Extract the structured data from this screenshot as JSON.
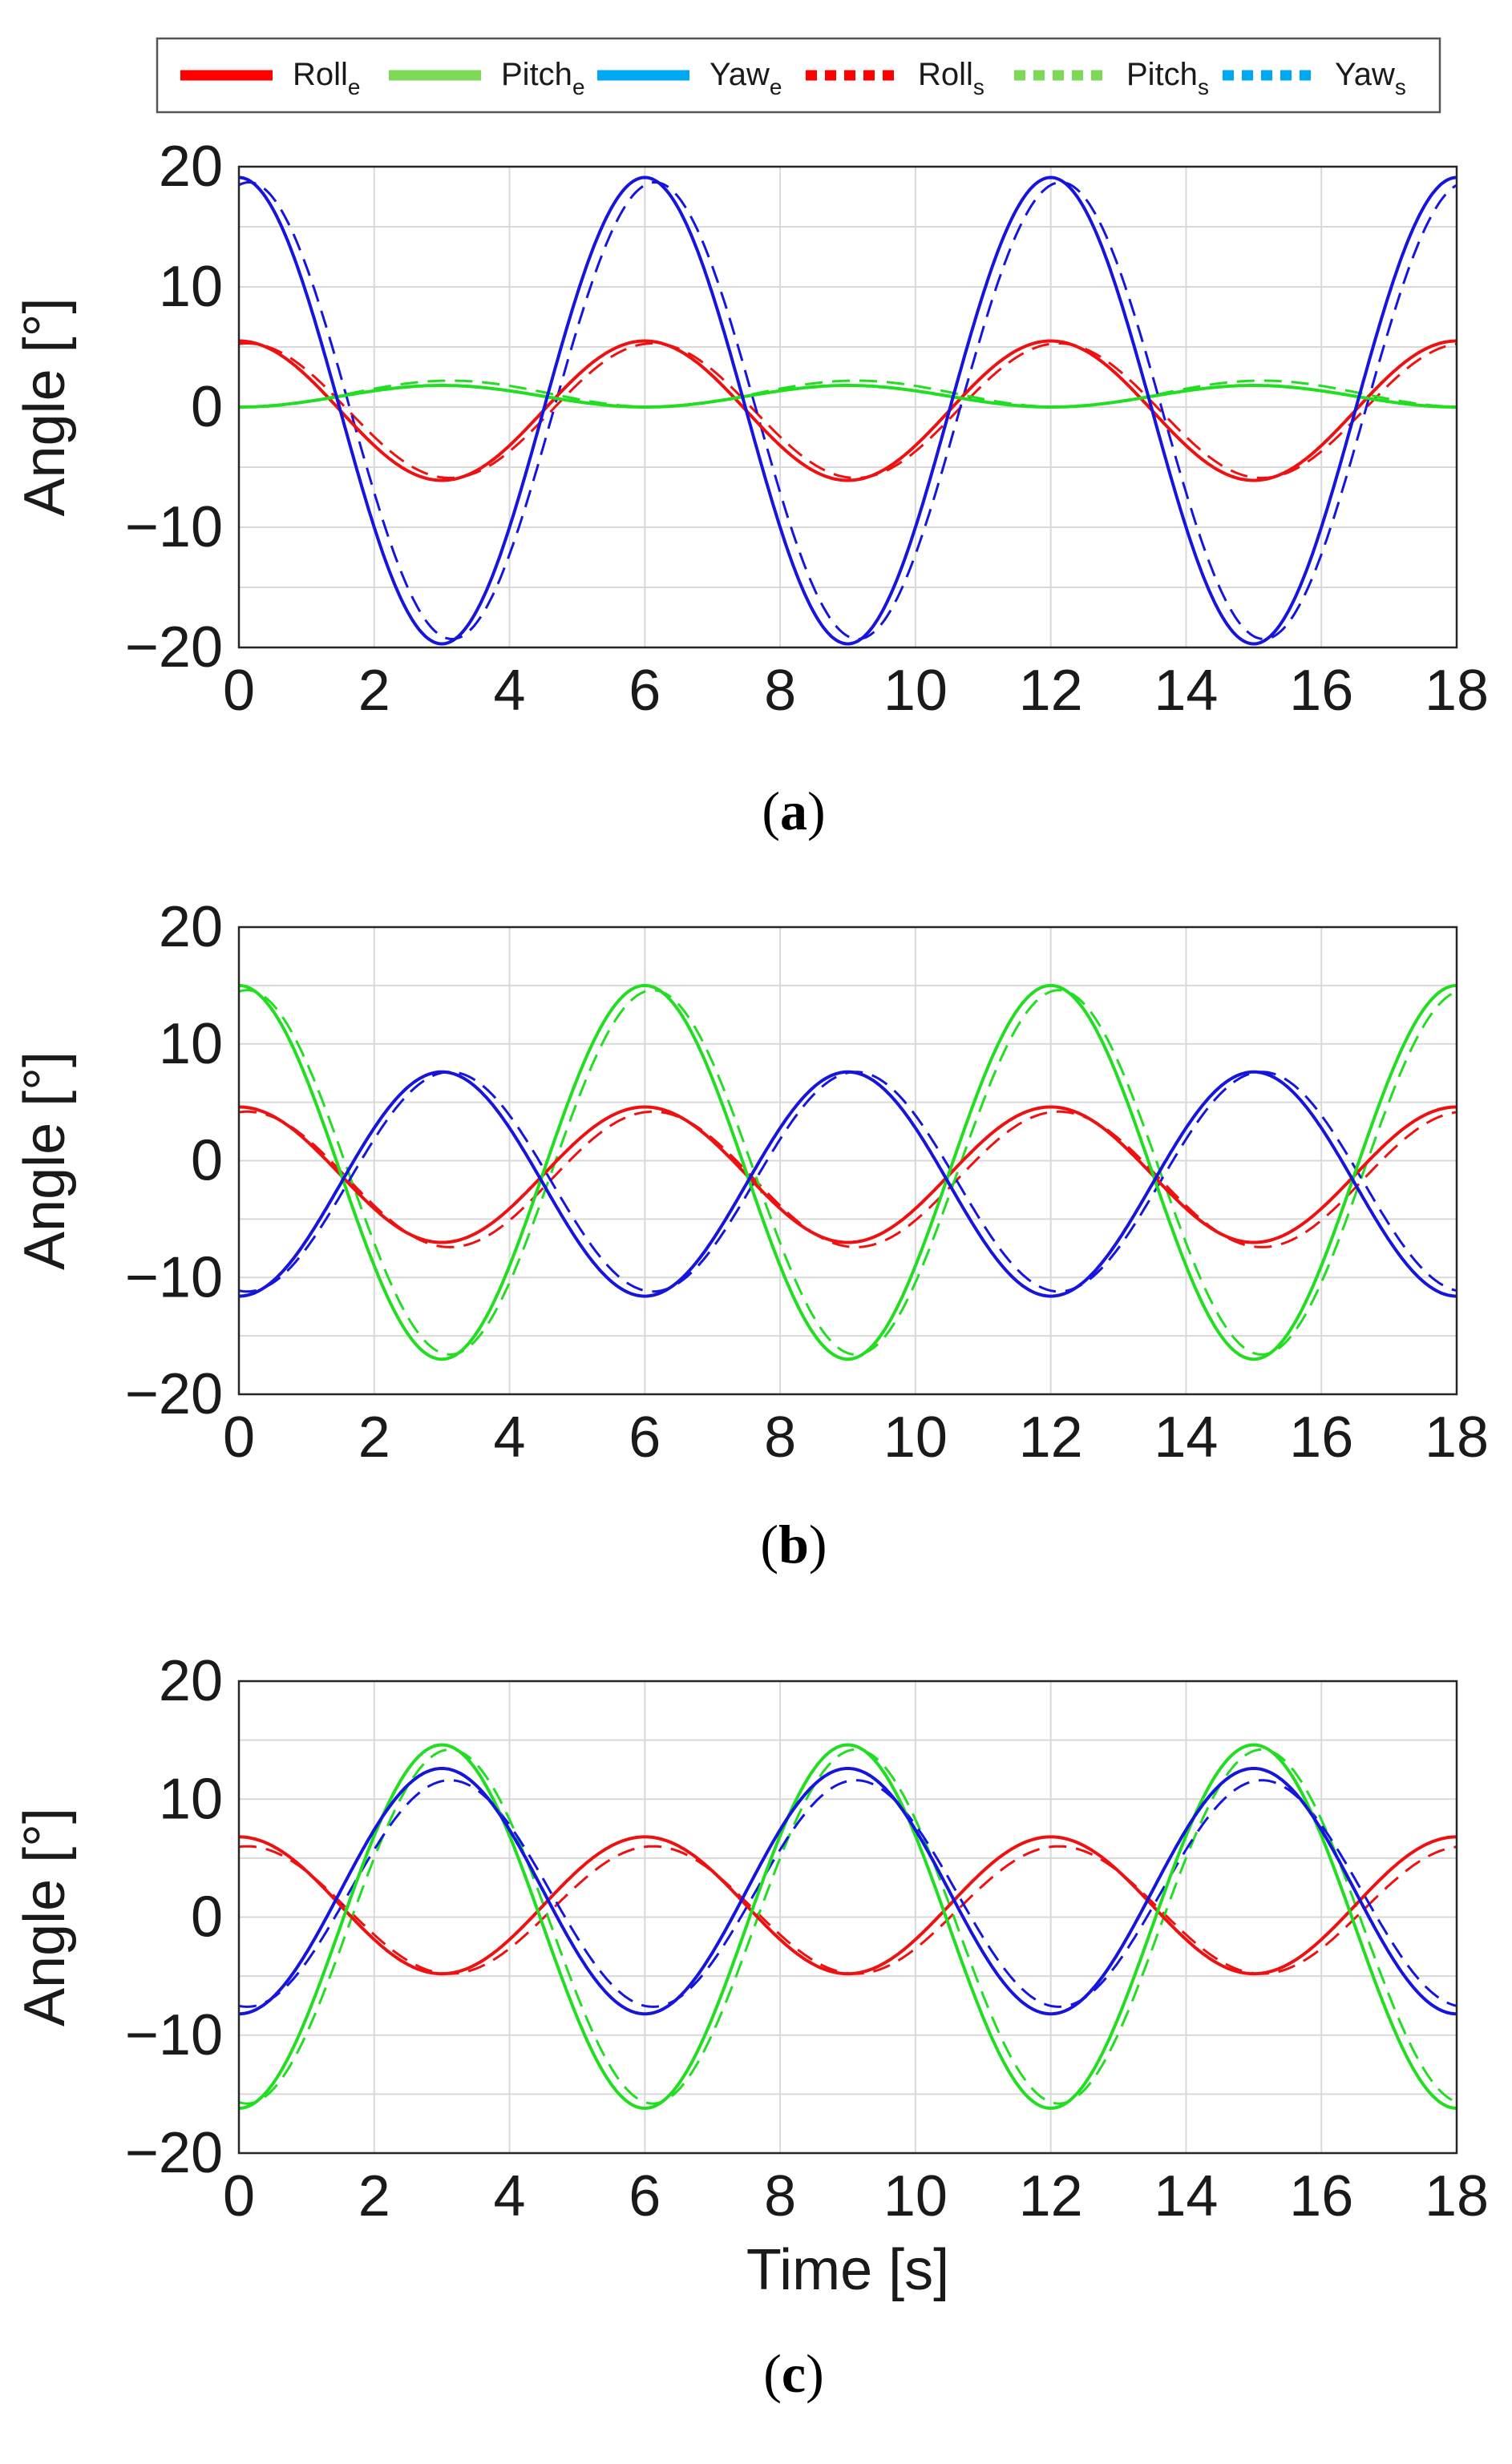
{
  "legend": {
    "entries": [
      {
        "name": "Roll",
        "sub": "e",
        "color": "#ff0000",
        "style": "solid"
      },
      {
        "name": "Pitch",
        "sub": "e",
        "color": "#7ed957",
        "style": "solid"
      },
      {
        "name": "Yaw",
        "sub": "e",
        "color": "#00a8f0",
        "style": "solid"
      },
      {
        "name": "Roll",
        "sub": "s",
        "color": "#ff0000",
        "style": "dotted"
      },
      {
        "name": "Pitch",
        "sub": "s",
        "color": "#7ed957",
        "style": "dotted"
      },
      {
        "name": "Yaw",
        "sub": "s",
        "color": "#00a8f0",
        "style": "dotted"
      }
    ]
  },
  "colors": {
    "roll": "#ee1111",
    "pitch": "#22dd22",
    "yaw": "#1515dd"
  },
  "chart_data": [
    {
      "type": "line",
      "caption": "a",
      "xlabel": "",
      "ylabel": "Angle [°]",
      "xlim": [
        0,
        18
      ],
      "ylim": [
        -20,
        20
      ],
      "xticks": [
        "0",
        "2",
        "4",
        "6",
        "8",
        "10",
        "12",
        "14",
        "16",
        "18"
      ],
      "yticks": [
        "20",
        "10",
        "0",
        "−10",
        "−20"
      ],
      "grid": true,
      "period_s": 6,
      "series": [
        {
          "name": "Roll_e",
          "shape": "cos",
          "offset": -0.3,
          "amplitude": 5.8,
          "color_key": "roll",
          "dashed": false
        },
        {
          "name": "Pitch_e",
          "shape": "cos",
          "offset": 0.9,
          "amplitude": -0.9,
          "color_key": "pitch",
          "dashed": false
        },
        {
          "name": "Yaw_e",
          "shape": "cos",
          "offset": -0.3,
          "amplitude": 19.4,
          "color_key": "yaw",
          "dashed": false
        },
        {
          "name": "Roll_s",
          "shape": "cos",
          "offset": -0.3,
          "amplitude": 5.6,
          "lag_s": 0.12,
          "color_key": "roll",
          "dashed": true
        },
        {
          "name": "Pitch_s",
          "shape": "cos",
          "offset": 1.1,
          "amplitude": -1.1,
          "lag_s": 0.12,
          "color_key": "pitch",
          "dashed": true
        },
        {
          "name": "Yaw_s",
          "shape": "cos",
          "offset": -0.3,
          "amplitude": 19.0,
          "lag_s": 0.15,
          "color_key": "yaw",
          "dashed": true
        }
      ]
    },
    {
      "type": "line",
      "caption": "b",
      "xlabel": "",
      "ylabel": "Angle [°]",
      "xlim": [
        0,
        18
      ],
      "ylim": [
        -20,
        20
      ],
      "xticks": [
        "0",
        "2",
        "4",
        "6",
        "8",
        "10",
        "12",
        "14",
        "16",
        "18"
      ],
      "yticks": [
        "20",
        "10",
        "0",
        "−10",
        "−20"
      ],
      "grid": true,
      "period_s": 6,
      "series": [
        {
          "name": "Roll_e",
          "shape": "cos",
          "offset": -1.2,
          "amplitude": 5.8,
          "color_key": "roll",
          "dashed": false
        },
        {
          "name": "Pitch_e",
          "shape": "cos",
          "offset": -1.0,
          "amplitude": 16.0,
          "color_key": "pitch",
          "dashed": false
        },
        {
          "name": "Yaw_e",
          "shape": "cos",
          "offset": -2.0,
          "amplitude": -9.6,
          "color_key": "yaw",
          "dashed": false
        },
        {
          "name": "Roll_s",
          "shape": "cos",
          "offset": -1.6,
          "amplitude": 5.8,
          "lag_s": 0.12,
          "color_key": "roll",
          "dashed": true
        },
        {
          "name": "Pitch_s",
          "shape": "cos",
          "offset": -1.0,
          "amplitude": 15.6,
          "lag_s": 0.12,
          "color_key": "pitch",
          "dashed": true
        },
        {
          "name": "Yaw_s",
          "shape": "cos",
          "offset": -1.8,
          "amplitude": -9.4,
          "lag_s": 0.12,
          "color_key": "yaw",
          "dashed": true
        }
      ]
    },
    {
      "type": "line",
      "caption": "c",
      "xlabel": "Time [s]",
      "ylabel": "Angle [°]",
      "xlim": [
        0,
        18
      ],
      "ylim": [
        -20,
        20
      ],
      "xticks": [
        "0",
        "2",
        "4",
        "6",
        "8",
        "10",
        "12",
        "14",
        "16",
        "18"
      ],
      "yticks": [
        "20",
        "10",
        "0",
        "−10",
        "−20"
      ],
      "grid": true,
      "period_s": 6,
      "series": [
        {
          "name": "Roll_e",
          "shape": "cos",
          "offset": 1.0,
          "amplitude": 5.8,
          "color_key": "roll",
          "dashed": false
        },
        {
          "name": "Pitch_e",
          "shape": "cos",
          "offset": -0.8,
          "amplitude": -15.4,
          "color_key": "pitch",
          "dashed": false
        },
        {
          "name": "Yaw_e",
          "shape": "cos",
          "offset": 2.2,
          "amplitude": -10.4,
          "color_key": "yaw",
          "dashed": false
        },
        {
          "name": "Roll_s",
          "shape": "cos",
          "offset": 0.6,
          "amplitude": 5.4,
          "lag_s": 0.12,
          "color_key": "roll",
          "dashed": true
        },
        {
          "name": "Pitch_s",
          "shape": "cos",
          "offset": -0.8,
          "amplitude": -15.0,
          "lag_s": 0.12,
          "color_key": "pitch",
          "dashed": true
        },
        {
          "name": "Yaw_s",
          "shape": "cos",
          "offset": 2.0,
          "amplitude": -9.6,
          "lag_s": 0.12,
          "color_key": "yaw",
          "dashed": true
        }
      ]
    }
  ]
}
